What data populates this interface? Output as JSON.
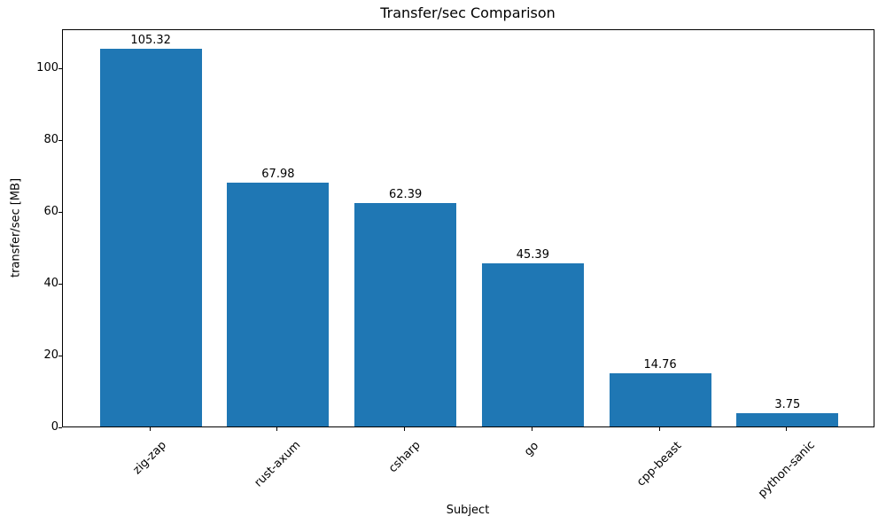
{
  "chart_data": {
    "type": "bar",
    "title": "Transfer/sec Comparison",
    "xlabel": "Subject",
    "ylabel": "transfer/sec [MB]",
    "categories": [
      "zig-zap",
      "rust-axum",
      "csharp",
      "go",
      "cpp-beast",
      "python-sanic"
    ],
    "values": [
      105.32,
      67.98,
      62.39,
      45.39,
      14.76,
      3.75
    ],
    "value_labels": [
      "105.32",
      "67.98",
      "62.39",
      "45.39",
      "14.76",
      "3.75"
    ],
    "yticks": [
      0,
      20,
      40,
      60,
      80,
      100
    ],
    "ylim": [
      0,
      111
    ],
    "grid": false,
    "legend": "none",
    "bar_color": "#1f77b4",
    "axis_color": "#000000",
    "text_color": "#000000",
    "background_color": "#ffffff"
  }
}
